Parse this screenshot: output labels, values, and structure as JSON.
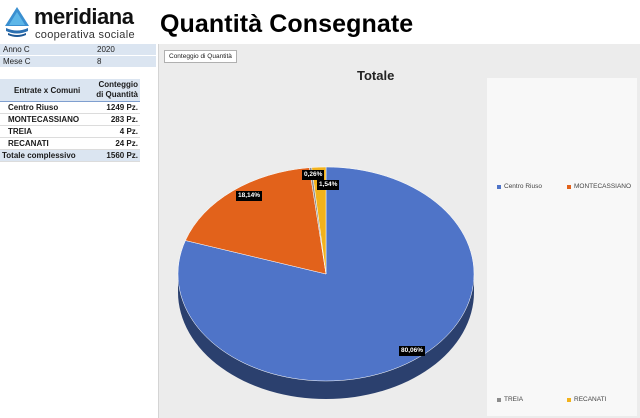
{
  "logo": {
    "name": "meridiana",
    "subtitle": "cooperativa sociale"
  },
  "page_title": "Quantità Consegnate",
  "filters": [
    {
      "label": "Anno C",
      "value": "2020"
    },
    {
      "label": "Mese C",
      "value": "8"
    }
  ],
  "pivot": {
    "header_left": "Entrate x Comuni",
    "header_right_line1": "Conteggio",
    "header_right_line2": "di Quantità",
    "rows": [
      {
        "label": "Centro Riuso",
        "value": "1249 Pz."
      },
      {
        "label": "MONTECASSIANO",
        "value": "283 Pz."
      },
      {
        "label": "TREIA",
        "value": "4 Pz."
      },
      {
        "label": "RECANATI",
        "value": "24 Pz."
      }
    ],
    "total_label": "Totale complessivo",
    "total_value": "1560 Pz."
  },
  "field_button": "Conteggio di Quantità",
  "chart_data": {
    "type": "pie",
    "title": "Totale",
    "categories": [
      "Centro Riuso",
      "MONTECASSIANO",
      "TREIA",
      "RECANATI"
    ],
    "values": [
      1249,
      283,
      4,
      24
    ],
    "percent_labels": [
      "80,06%",
      "18,14%",
      "0,26%",
      "1,54%"
    ],
    "colors": [
      "#4f74c8",
      "#e2621b",
      "#8c8c8c",
      "#f2b21c"
    ],
    "legend_position": "right"
  }
}
